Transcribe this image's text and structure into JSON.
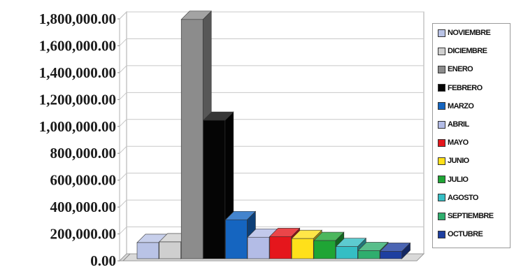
{
  "chart_data": {
    "type": "bar",
    "title": "",
    "xlabel": "",
    "ylabel": "",
    "ylim": [
      0,
      1800000
    ],
    "yticks": [
      "0.00",
      "200,000.00",
      "400,000.00",
      "600,000.00",
      "800,000.00",
      "1,000,000.00",
      "1,200,000.00",
      "1,400,000.00",
      "1,600,000.00",
      "1,800,000.00"
    ],
    "ytick_values": [
      0,
      200000,
      400000,
      600000,
      800000,
      1000000,
      1200000,
      1400000,
      1600000,
      1800000
    ],
    "grid": true,
    "legend_position": "right",
    "style": "3d-bar",
    "series": [
      {
        "name": "NOVIEMBRE",
        "value": 120000,
        "color": "#b9c3e6"
      },
      {
        "name": "DICIEMBRE",
        "value": 125000,
        "color": "#cfcfcf"
      },
      {
        "name": "ENERO",
        "value": 1780000,
        "color": "#8c8c8c"
      },
      {
        "name": "FEBRERO",
        "value": 1030000,
        "color": "#050505"
      },
      {
        "name": "MARZO",
        "value": 290000,
        "color": "#1565c0"
      },
      {
        "name": "ABRIL",
        "value": 160000,
        "color": "#b3bce6"
      },
      {
        "name": "MAYO",
        "value": 165000,
        "color": "#e5161c"
      },
      {
        "name": "JUNIO",
        "value": 150000,
        "color": "#ffe01a"
      },
      {
        "name": "JULIO",
        "value": 135000,
        "color": "#1fa535"
      },
      {
        "name": "AGOSTO",
        "value": 90000,
        "color": "#35bec4"
      },
      {
        "name": "SEPTIEMBRE",
        "value": 60000,
        "color": "#2fae6e"
      },
      {
        "name": "OCTUBRE",
        "value": 55000,
        "color": "#1e3fa0"
      }
    ]
  }
}
